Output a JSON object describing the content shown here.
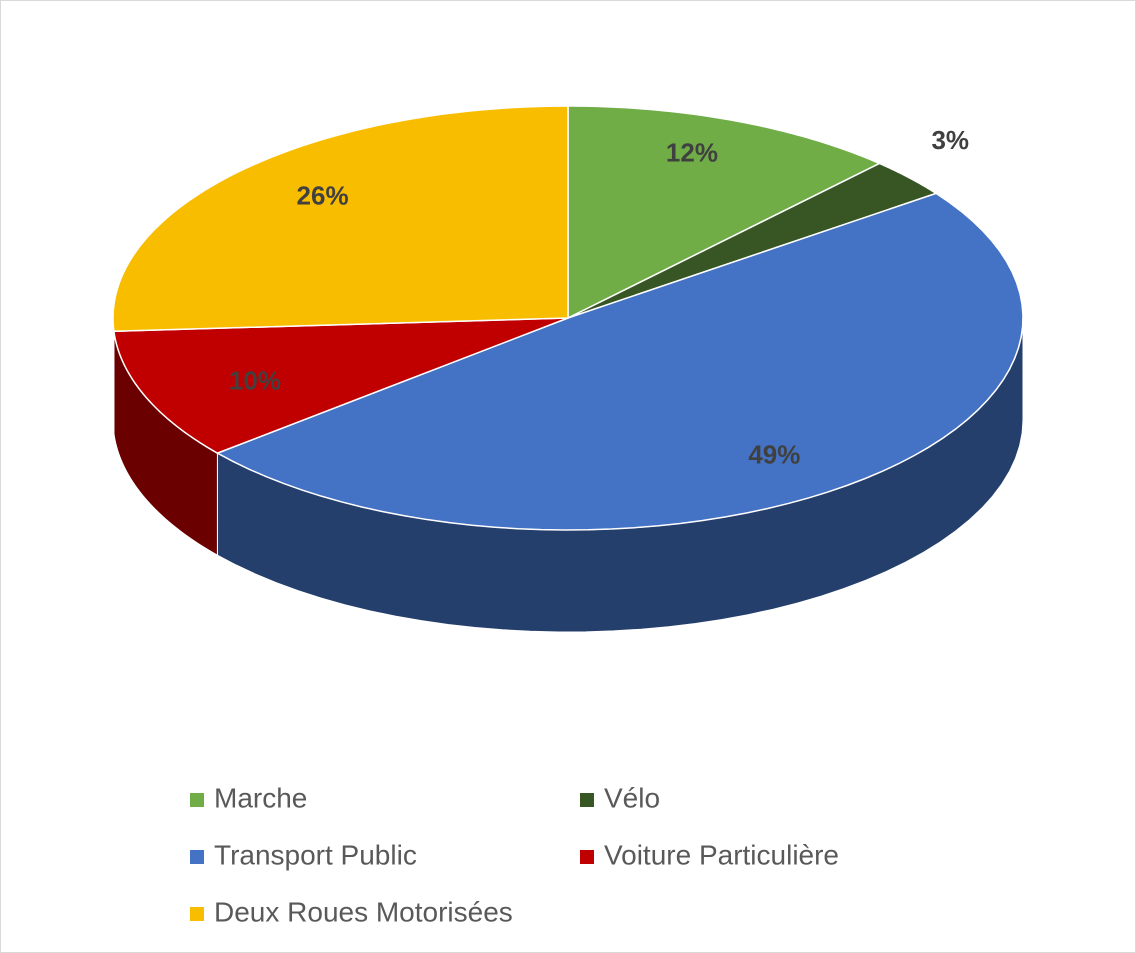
{
  "chart_data": {
    "type": "pie",
    "categories": [
      "Marche",
      "Vélo",
      "Transport Public",
      "Voiture Particulière",
      "Deux Roues Motorisées"
    ],
    "values": [
      12,
      3,
      49,
      10,
      26
    ],
    "value_labels": [
      "12%",
      "3%",
      "49%",
      "10%",
      "26%"
    ],
    "colors": [
      "#70ad47",
      "#375623",
      "#4472c4",
      "#c00000",
      "#f9bd00"
    ]
  }
}
